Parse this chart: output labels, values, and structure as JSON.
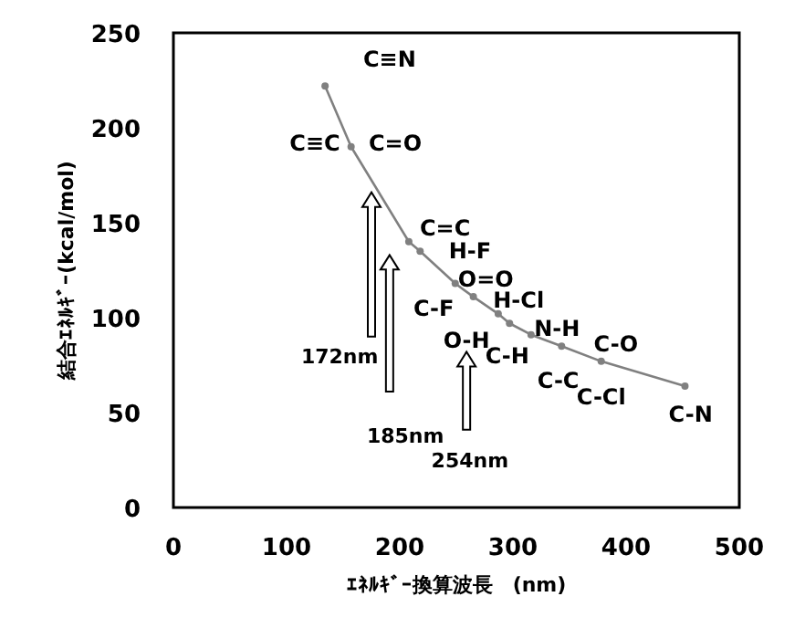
{
  "chart_data": {
    "type": "line",
    "xlabel": "ｴﾈﾙｷﾞｰ換算波長　(nm)",
    "ylabel": "結合ｴﾈﾙｷﾞｰ(kcal/mol)",
    "x": [
      134,
      157,
      208,
      218,
      249,
      265,
      287,
      297,
      316,
      343,
      378,
      452
    ],
    "series": [
      {
        "color": "#808080",
        "values": [
          222,
          190,
          140,
          135,
          118,
          111,
          102,
          97,
          91,
          85,
          77,
          64
        ]
      }
    ],
    "marker": "circle",
    "line_style": "solid",
    "xlim": [
      0,
      500
    ],
    "xticks": [
      0,
      100,
      200,
      300,
      400,
      500
    ],
    "ylim": [
      0,
      250
    ],
    "yticks": [
      0,
      50,
      100,
      150,
      200,
      250
    ],
    "annotations": [
      "C≡N",
      "C≡C",
      "C=O",
      "C=C",
      "H-F",
      "O=O",
      "H-Cl",
      "C-F",
      "N-H",
      "O-H",
      "C-H",
      "C-O",
      "C-C",
      "C-Cl",
      "C-N",
      "172nm",
      "185nm",
      "254nm"
    ]
  }
}
